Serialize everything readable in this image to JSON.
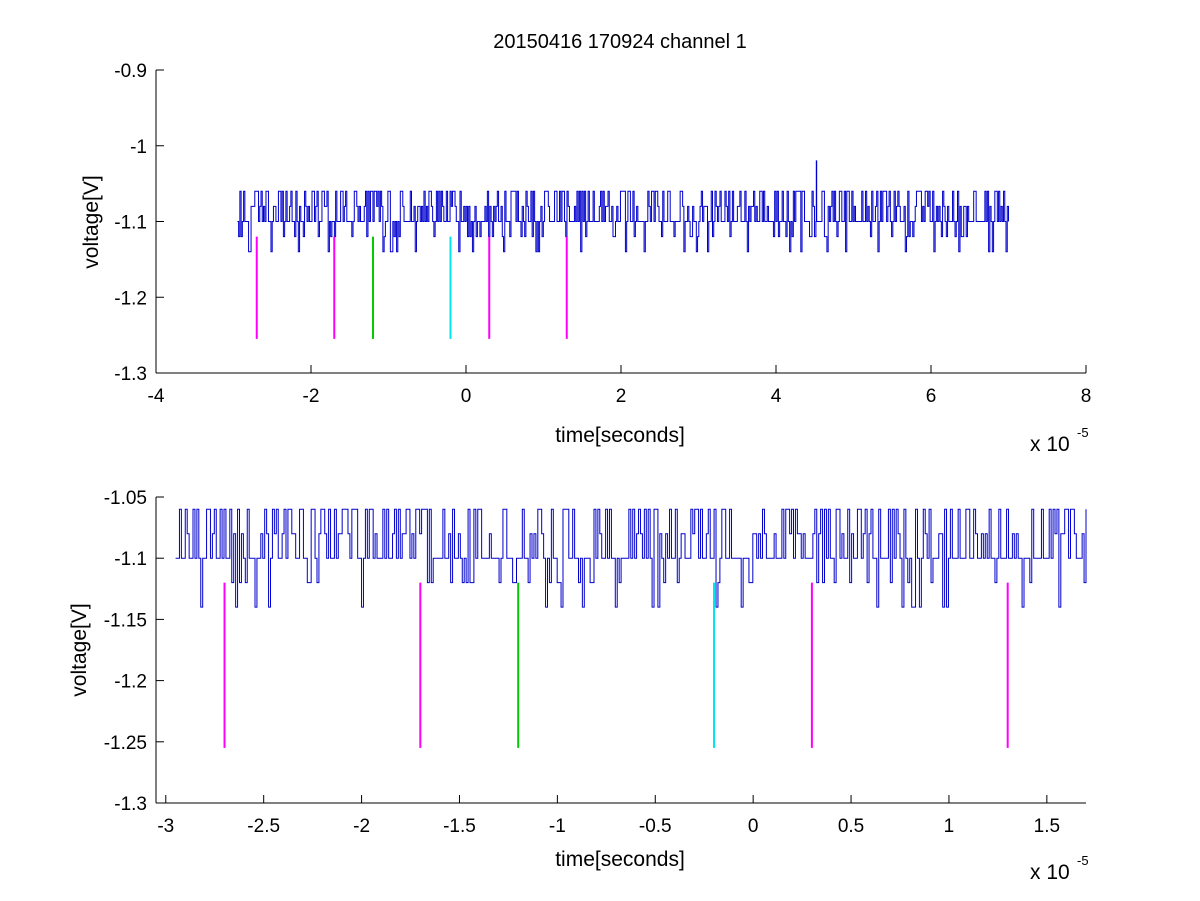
{
  "figure_title": "20150416 170924 channel 1",
  "colors": {
    "signal": "#0000cc",
    "magenta": "#ff00ff",
    "green": "#00cc00",
    "cyan": "#00e5ee",
    "axis": "#000000",
    "background": "#ffffff"
  },
  "chart_data": [
    {
      "type": "line",
      "title": "20150416 170924 channel 1",
      "xlabel": "time[seconds]",
      "ylabel": "voltage[V]",
      "x_multiplier": "x 10",
      "x_multiplier_exp": "-5",
      "xlim": [
        -4,
        8
      ],
      "ylim": [
        -1.3,
        -0.9
      ],
      "xticks": [
        -4,
        -2,
        0,
        2,
        4,
        6,
        8
      ],
      "xtick_labels": [
        "-4",
        "-2",
        "0",
        "2",
        "4",
        "6",
        "8"
      ],
      "yticks": [
        -1.3,
        -1.2,
        -1.1,
        -1.0,
        -0.9
      ],
      "ytick_labels": [
        "-1.3",
        "-1.2",
        "-1.1",
        "-1",
        "-0.9"
      ],
      "grid": false,
      "series": [
        {
          "color": "#0000cc",
          "x_range": [
            -2.95,
            7.0
          ],
          "baseline": -1.1,
          "levels": [
            -1.14,
            -1.12,
            -1.1,
            -1.08,
            -1.06
          ],
          "peak": {
            "x": 4.52,
            "y": -1.02
          }
        }
      ],
      "markers": [
        {
          "x": -2.7,
          "y_top": -1.12,
          "y_bottom": -1.255,
          "color": "#ff00ff"
        },
        {
          "x": -1.7,
          "y_top": -1.12,
          "y_bottom": -1.255,
          "color": "#ff00ff"
        },
        {
          "x": -1.2,
          "y_top": -1.12,
          "y_bottom": -1.255,
          "color": "#00cc00"
        },
        {
          "x": -0.2,
          "y_top": -1.12,
          "y_bottom": -1.255,
          "color": "#00e5ee"
        },
        {
          "x": 0.3,
          "y_top": -1.12,
          "y_bottom": -1.255,
          "color": "#ff00ff"
        },
        {
          "x": 1.3,
          "y_top": -1.12,
          "y_bottom": -1.255,
          "color": "#ff00ff"
        }
      ]
    },
    {
      "type": "line",
      "title": "",
      "xlabel": "time[seconds]",
      "ylabel": "voltage[V]",
      "x_multiplier": "x 10",
      "x_multiplier_exp": "-5",
      "xlim": [
        -3.05,
        1.7
      ],
      "ylim": [
        -1.3,
        -1.05
      ],
      "xticks": [
        -3,
        -2.5,
        -2,
        -1.5,
        -1,
        -0.5,
        0,
        0.5,
        1,
        1.5
      ],
      "xtick_labels": [
        "-3",
        "-2.5",
        "-2",
        "-1.5",
        "-1",
        "-0.5",
        "0",
        "0.5",
        "1",
        "1.5"
      ],
      "yticks": [
        -1.3,
        -1.25,
        -1.2,
        -1.15,
        -1.1,
        -1.05
      ],
      "ytick_labels": [
        "-1.3",
        "-1.25",
        "-1.2",
        "-1.15",
        "-1.1",
        "-1.05"
      ],
      "grid": false,
      "series": [
        {
          "color": "#0000cc",
          "x_range": [
            -2.95,
            1.7
          ],
          "baseline": -1.1,
          "levels": [
            -1.14,
            -1.12,
            -1.1,
            -1.08,
            -1.06
          ]
        }
      ],
      "markers": [
        {
          "x": -2.7,
          "y_top": -1.12,
          "y_bottom": -1.255,
          "color": "#ff00ff"
        },
        {
          "x": -1.7,
          "y_top": -1.12,
          "y_bottom": -1.255,
          "color": "#ff00ff"
        },
        {
          "x": -1.2,
          "y_top": -1.12,
          "y_bottom": -1.255,
          "color": "#00cc00"
        },
        {
          "x": -0.2,
          "y_top": -1.12,
          "y_bottom": -1.255,
          "color": "#00e5ee"
        },
        {
          "x": 0.3,
          "y_top": -1.12,
          "y_bottom": -1.255,
          "color": "#ff00ff"
        },
        {
          "x": 1.3,
          "y_top": -1.12,
          "y_bottom": -1.255,
          "color": "#ff00ff"
        }
      ]
    }
  ]
}
